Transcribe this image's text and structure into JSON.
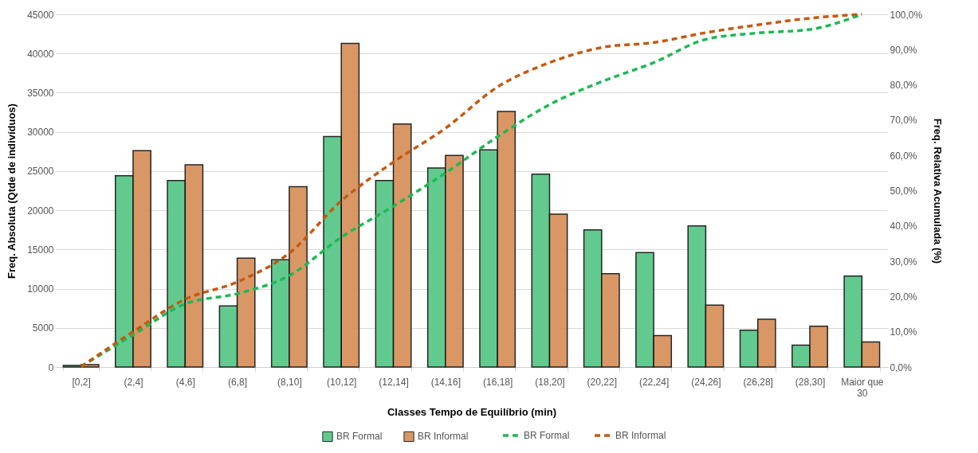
{
  "chart_data": {
    "type": "bar",
    "xlabel": "Classes Tempo de Equilíbrio (min)",
    "ylabel": "Freq. Absoluta (Qtde de indivíduos)",
    "y2label": "Freq. Relativa Acumulada (%)",
    "categories": [
      "[0,2]",
      "(2,4]",
      "(4,6]",
      "(6,8]",
      "(8,10]",
      "(10,12]",
      "(12,14]",
      "(14,16]",
      "(16,18]",
      "(18,20]",
      "(20,22]",
      "(22,24]",
      "(24,26]",
      "(26,28]",
      "(28,30]",
      "Maior que 30"
    ],
    "series": [
      {
        "name": "BR Formal",
        "color": "#5ac88a",
        "values": [
          200,
          24400,
          23800,
          7800,
          13700,
          29400,
          23800,
          25400,
          27700,
          24600,
          17500,
          14600,
          18000,
          4700,
          2800,
          11600
        ]
      },
      {
        "name": "BR Informal",
        "color": "#d8925e",
        "values": [
          300,
          27600,
          25800,
          13900,
          23000,
          41300,
          31000,
          27000,
          32600,
          19500,
          11900,
          4000,
          7900,
          6100,
          5200,
          3200
        ]
      },
      {
        "name": "BR Formal",
        "type": "line",
        "axis": "y2",
        "color": "#1db954",
        "values": [
          0.1,
          9.1,
          17.9,
          20.8,
          25.9,
          36.8,
          45.6,
          55.0,
          65.3,
          74.4,
          80.9,
          86.3,
          92.9,
          94.7,
          95.7,
          100.0
        ]
      },
      {
        "name": "BR Informal",
        "type": "line",
        "axis": "y2",
        "color": "#c55a11",
        "values": [
          0.1,
          10.0,
          19.2,
          24.1,
          32.3,
          47.1,
          58.1,
          67.7,
          79.4,
          86.3,
          90.6,
          92.0,
          94.8,
          97.0,
          98.9,
          100.0
        ]
      }
    ],
    "ylim": [
      0,
      45000
    ],
    "yticks": [
      0,
      5000,
      10000,
      15000,
      20000,
      25000,
      30000,
      35000,
      40000,
      45000
    ],
    "y2lim": [
      0,
      100
    ],
    "y2ticks": [
      {
        "value": 0,
        "label": "0,0%"
      },
      {
        "value": 10,
        "label": "10,0%"
      },
      {
        "value": 20,
        "label": "20,0%"
      },
      {
        "value": 30,
        "label": "30,0%"
      },
      {
        "value": 40,
        "label": "40,0%"
      },
      {
        "value": 50,
        "label": "50,0%"
      },
      {
        "value": 60,
        "label": "60,0%"
      },
      {
        "value": 70,
        "label": "70,0%"
      },
      {
        "value": 80,
        "label": "80,0%"
      },
      {
        "value": 90,
        "label": "90,0%"
      },
      {
        "value": 100,
        "label": "100,0%"
      }
    ],
    "grid": "y",
    "legend": "bottom",
    "line_style": "dashed"
  }
}
